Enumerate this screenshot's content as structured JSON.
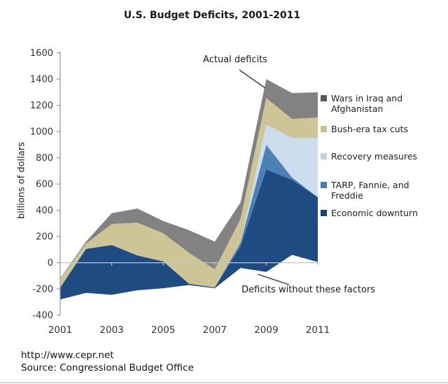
{
  "title": "U.S. Budget Deficits, 2001-2011",
  "annotations": {
    "actual_deficits": "Actual deficits",
    "deficits_without": "Deficits without these factors"
  },
  "legend": {
    "position": "right",
    "items": [
      {
        "label": "Wars in Iraq and Afghanistan",
        "color": "#595959"
      },
      {
        "label": "Bush-era tax cuts",
        "color": "#c9c08f"
      },
      {
        "label": "Recovery measures",
        "color": "#bed3e7"
      },
      {
        "label": "TARP, Fannie, and Freddie",
        "color": "#487cb0"
      },
      {
        "label": "Economic downturn",
        "color": "#17466f"
      }
    ]
  },
  "footer": {
    "url": "http://www.cepr.net",
    "source": "Source: Congressional Budget Office"
  },
  "chart_data": {
    "type": "area",
    "stacked": true,
    "title": "U.S. Budget Deficits, 2001-2011",
    "xlabel": "",
    "ylabel": "billions of dollars",
    "ylim": [
      -400,
      1600
    ],
    "ytick_step": 200,
    "xticks": [
      2001,
      2003,
      2005,
      2007,
      2009,
      2011
    ],
    "grid": "zero line only",
    "legend_position": "right",
    "x": [
      2001,
      2002,
      2003,
      2004,
      2005,
      2006,
      2007,
      2008,
      2009,
      2010,
      2011
    ],
    "baseline": {
      "name": "Deficits without these factors",
      "values": [
        -280,
        -230,
        -245,
        -210,
        -195,
        -170,
        -195,
        -40,
        -70,
        60,
        5
      ]
    },
    "series": [
      {
        "name": "Economic downturn",
        "color": "#1d4b82",
        "values": [
          90,
          335,
          380,
          265,
          205,
          10,
          7,
          166,
          782,
          572,
          494
        ]
      },
      {
        "name": "TARP, Fannie, and Freddie",
        "color": "#4d80b5",
        "values": [
          0,
          0,
          0,
          0,
          0,
          0,
          0,
          26,
          187,
          18,
          0
        ]
      },
      {
        "name": "Recovery measures",
        "color": "#ccddee",
        "values": [
          0,
          0,
          0,
          0,
          0,
          0,
          0,
          0,
          154,
          302,
          453
        ]
      },
      {
        "name": "Bush-era tax cuts",
        "color": "#cdc596",
        "values": [
          65,
          40,
          160,
          250,
          215,
          235,
          138,
          181,
          203,
          144,
          155
        ]
      },
      {
        "name": "Wars in Iraq and Afghanistan",
        "color": "#828282",
        "values": [
          5,
          15,
          83,
          108,
          93,
          173,
          211,
          126,
          144,
          198,
          192
        ]
      }
    ],
    "actual_deficits": {
      "name": "Actual deficits",
      "values": [
        -120,
        160,
        378,
        413,
        318,
        248,
        161,
        459,
        1400,
        1294,
        1299
      ]
    }
  }
}
